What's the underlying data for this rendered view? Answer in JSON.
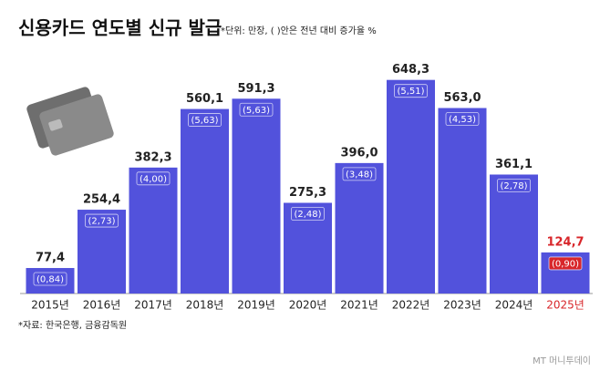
{
  "chart_data": {
    "type": "bar",
    "title": "신용카드 연도별 신규 발급",
    "subtitle": "*단위: 만장, ( )안은 전년 대비 증가율 %",
    "source": "*자료: 한국은행, 금융감독원",
    "watermark": "MT 머니투데이",
    "categories": [
      "2015년",
      "2016년",
      "2017년",
      "2018년",
      "2019년",
      "2020년",
      "2021년",
      "2022년",
      "2023년",
      "2024년",
      "2025년"
    ],
    "values": [
      77.4,
      254.4,
      382.3,
      560.1,
      591.3,
      275.3,
      396.0,
      648.3,
      563.0,
      361.1,
      124.7
    ],
    "value_labels": [
      "77,4",
      "254,4",
      "382,3",
      "560,1",
      "591,3",
      "275,3",
      "396,0",
      "648,3",
      "563,0",
      "361,1",
      "124,7"
    ],
    "rates": [
      0.84,
      2.73,
      4.0,
      5.63,
      5.63,
      2.48,
      3.48,
      5.51,
      4.53,
      2.78,
      0.9
    ],
    "rate_labels": [
      "(0,84)",
      "(2,73)",
      "(4,00)",
      "(5,63)",
      "(5,63)",
      "(2,48)",
      "(3,48)",
      "(5,51)",
      "(4,53)",
      "(2,78)",
      "(0,90)"
    ],
    "color": "#5252dc",
    "label_colors": [
      "#222222",
      "#222222",
      "#222222",
      "#222222",
      "#222222",
      "#222222",
      "#222222",
      "#222222",
      "#222222",
      "#222222",
      "#d8262a"
    ],
    "ylim": [
      0,
      700
    ]
  }
}
